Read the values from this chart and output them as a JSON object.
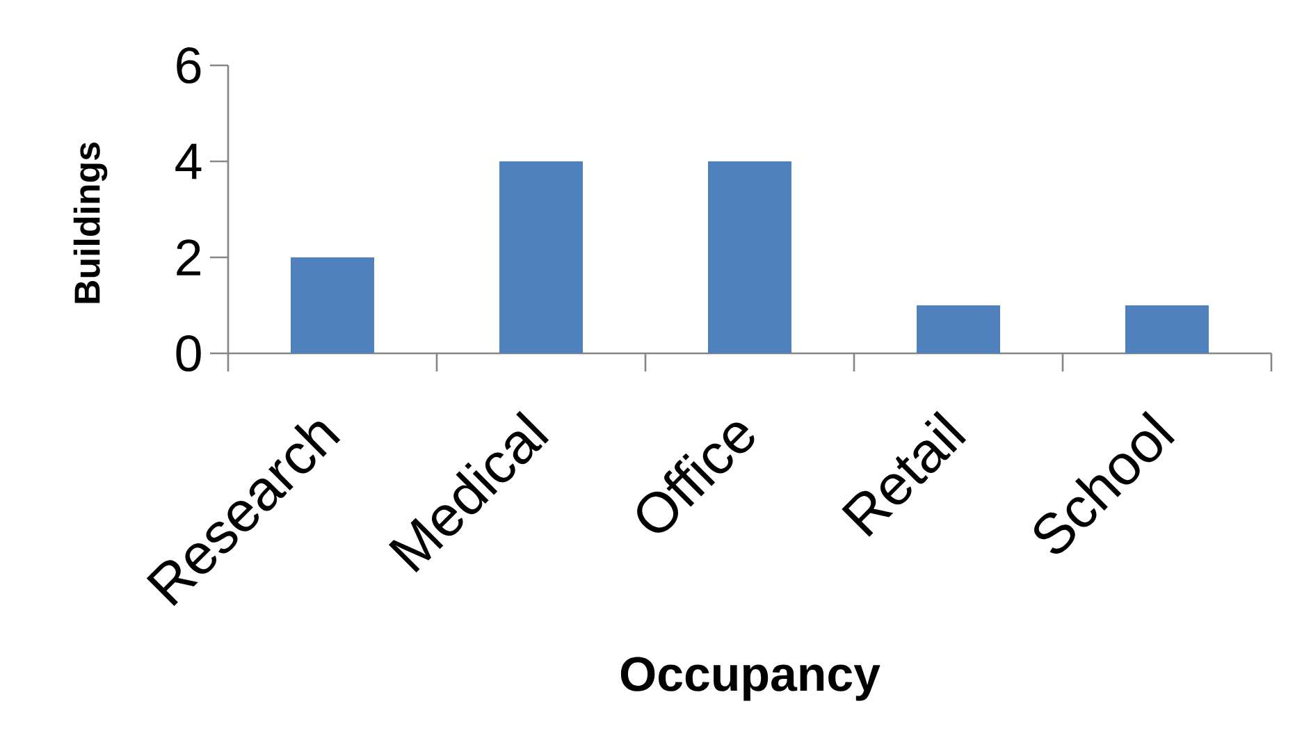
{
  "chart_data": {
    "type": "bar",
    "xlabel": "Occupancy",
    "ylabel": "Buildings",
    "categories": [
      "Research",
      "Medical",
      "Office",
      "Retail",
      "School"
    ],
    "values": [
      2,
      4,
      4,
      1,
      1
    ],
    "color": "#4f81bd",
    "ylim": [
      0,
      6
    ],
    "yticks": [
      0,
      2,
      4,
      6
    ]
  }
}
